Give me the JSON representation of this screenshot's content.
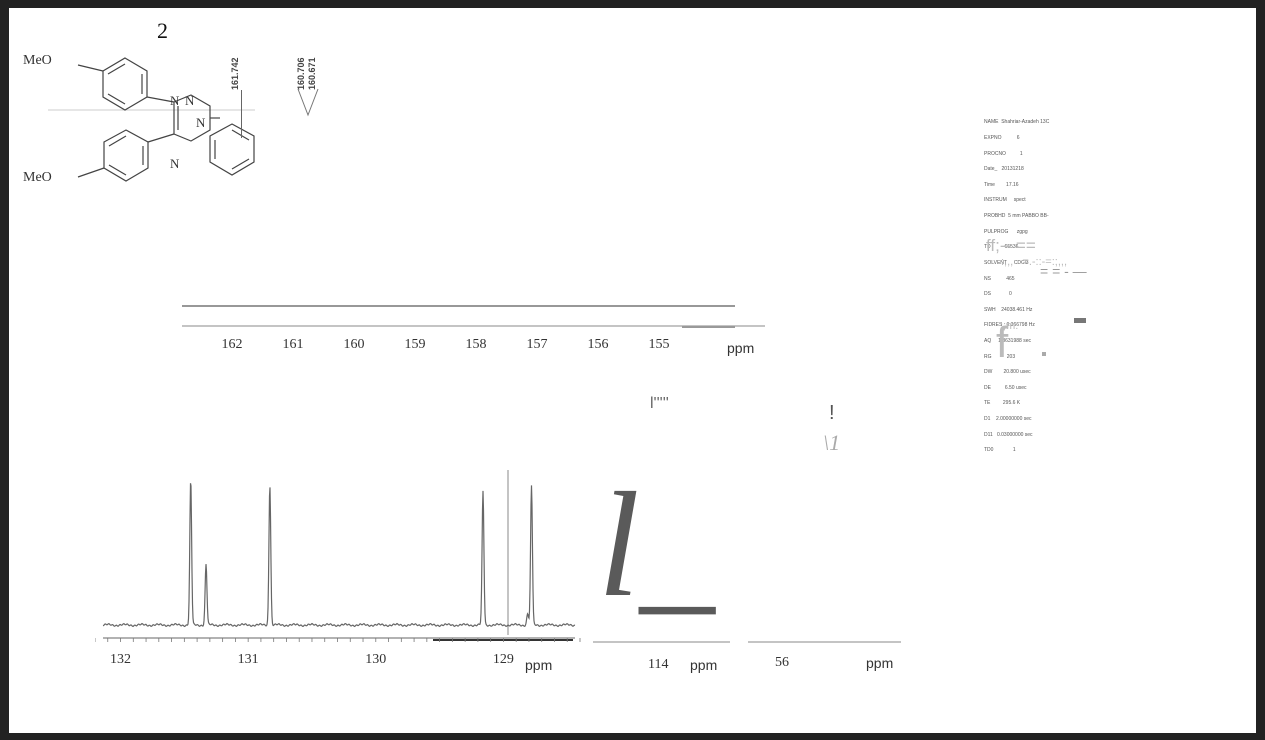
{
  "compound": {
    "number": "2",
    "substituent_top": "MeO",
    "substituent_bottom": "MeO",
    "ring_atoms": [
      "N",
      "N",
      "N",
      "N"
    ]
  },
  "peak_labels": [
    "161.742",
    "160.706",
    "160.671"
  ],
  "acq_params": [
    "NAME  Shahriar-Azadeh 13C",
    "EXPNO           6",
    "PROCNO          1",
    "Date_   20131218",
    "Time        17.16",
    "INSTRUM     spect",
    "PROBHD  5 mm PABBO BB-",
    "PULPROG      zgpg",
    "TD          65536",
    "SOLVENT     CDCl3",
    "NS           465",
    "DS             0",
    "SWH    24038.461 Hz",
    "FIDRES   0.366798 Hz",
    "AQ     1.3631988 sec",
    "RG           203",
    "DW        20.800 usec",
    "DE          6.50 usec",
    "TE         295.6 K",
    "D1    2.00000000 sec",
    "D11   0.03000000 sec",
    "TD0              1"
  ],
  "scan_artifacts": {
    "a": "ff;-- ==",
    "b": ":,,,   =.-::-=:;,,,",
    "c": "= = - —",
    "d": ";;m:",
    "e": "f",
    "f": "!",
    "g": "\\1",
    "h": "l_",
    "i": "l'''''"
  },
  "chart_data": [
    {
      "type": "line",
      "title": "",
      "xlabel": "ppm",
      "x_ticks": [
        "162",
        "161",
        "160",
        "159",
        "158",
        "157",
        "156",
        "155"
      ],
      "xlim": [
        162.6,
        154.6
      ],
      "x_reversed": true,
      "peaks": [],
      "grid": false
    },
    {
      "type": "line",
      "title": "",
      "xlabel": "ppm",
      "x_ticks": [
        "132",
        "131",
        "130",
        "129"
      ],
      "xlim": [
        132.2,
        128.4
      ],
      "x_reversed": true,
      "peaks": [
        {
          "x": 131.45,
          "height": 1.0
        },
        {
          "x": 131.33,
          "height": 0.42
        },
        {
          "x": 130.83,
          "height": 0.97
        },
        {
          "x": 129.16,
          "height": 0.92
        },
        {
          "x": 128.81,
          "height": 0.08
        },
        {
          "x": 128.78,
          "height": 0.96
        }
      ],
      "grid": false
    },
    {
      "type": "line",
      "title": "",
      "xlabel": "ppm",
      "x_ticks": [
        "114"
      ],
      "grid": false
    },
    {
      "type": "line",
      "title": "",
      "xlabel": "ppm",
      "x_ticks": [
        "56"
      ],
      "grid": false
    }
  ]
}
